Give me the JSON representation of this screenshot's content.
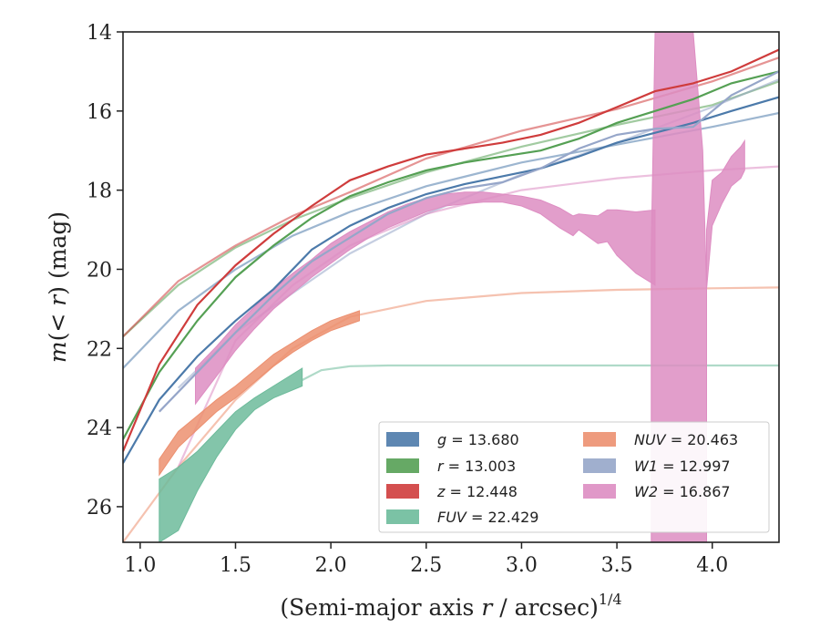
{
  "chart_data": {
    "type": "line",
    "xlabel_main": "(Semi-major axis ",
    "xlabel_r": "r",
    "xlabel_tail": " / arcsec)",
    "xlabel_sup": "1/4",
    "ylabel_m": "m",
    "ylabel_mid": "(< ",
    "ylabel_r": "r",
    "ylabel_tail": ") (mag)",
    "xlim": [
      0.91,
      4.35
    ],
    "ylim": [
      26.9,
      14.0
    ],
    "y_inverted": true,
    "xticks": [
      1.0,
      1.5,
      2.0,
      2.5,
      3.0,
      3.5,
      4.0
    ],
    "xtick_labels": [
      "1.0",
      "1.5",
      "2.0",
      "2.5",
      "3.0",
      "3.5",
      "4.0"
    ],
    "yticks": [
      14,
      16,
      18,
      20,
      22,
      24,
      26
    ],
    "ytick_labels": [
      "14",
      "16",
      "18",
      "20",
      "22",
      "24",
      "26"
    ],
    "legend_position": "lower-right",
    "legend": [
      {
        "key": "g",
        "band": "g",
        "value": "13.680",
        "color": "#4c7aaa"
      },
      {
        "key": "r",
        "band": "r",
        "value": "13.003",
        "color": "#55a054"
      },
      {
        "key": "z",
        "band": "z",
        "value": "12.448",
        "color": "#cf3c3c"
      },
      {
        "key": "FUV",
        "band": "FUV",
        "value": "22.429",
        "color": "#6dbb9b"
      },
      {
        "key": "NUV",
        "band": "NUV",
        "value": "20.463",
        "color": "#ec9070"
      },
      {
        "key": "W1",
        "band": "W1",
        "value": "12.997",
        "color": "#96a6c9"
      },
      {
        "key": "W2",
        "band": "W2",
        "value": "16.867",
        "color": "#dd8dc2"
      }
    ],
    "series": [
      {
        "key": "g",
        "kind": "line",
        "x": [
          0.91,
          1.1,
          1.3,
          1.5,
          1.7,
          1.9,
          2.1,
          2.3,
          2.5,
          2.7,
          2.9,
          3.1,
          3.3,
          3.5,
          3.7,
          3.9,
          4.1,
          4.35
        ],
        "y": [
          24.9,
          23.3,
          22.2,
          21.3,
          20.5,
          19.5,
          18.9,
          18.45,
          18.1,
          17.85,
          17.65,
          17.45,
          17.15,
          16.8,
          16.55,
          16.3,
          16.0,
          15.65
        ]
      },
      {
        "key": "r",
        "kind": "line",
        "x": [
          0.91,
          1.1,
          1.3,
          1.5,
          1.7,
          1.9,
          2.1,
          2.3,
          2.5,
          2.7,
          2.9,
          3.1,
          3.3,
          3.5,
          3.7,
          3.9,
          4.1,
          4.35
        ],
        "y": [
          24.3,
          22.6,
          21.3,
          20.2,
          19.4,
          18.7,
          18.15,
          17.8,
          17.5,
          17.3,
          17.15,
          17.0,
          16.7,
          16.3,
          16.0,
          15.7,
          15.3,
          15.0
        ]
      },
      {
        "key": "z",
        "kind": "line",
        "x": [
          0.91,
          1.1,
          1.3,
          1.5,
          1.7,
          1.9,
          2.1,
          2.3,
          2.5,
          2.7,
          2.9,
          3.1,
          3.3,
          3.5,
          3.7,
          3.9,
          4.1,
          4.35
        ],
        "y": [
          24.6,
          22.4,
          20.9,
          19.9,
          19.1,
          18.4,
          17.75,
          17.4,
          17.1,
          16.95,
          16.8,
          16.6,
          16.3,
          15.9,
          15.5,
          15.3,
          15.0,
          14.45
        ]
      },
      {
        "key": "W1",
        "kind": "line",
        "x": [
          1.1,
          1.3,
          1.5,
          1.7,
          1.9,
          2.1,
          2.3,
          2.5,
          2.7,
          2.9,
          3.1,
          3.3,
          3.5,
          3.7,
          3.9,
          4.1,
          4.35
        ],
        "y": [
          23.6,
          22.6,
          21.6,
          20.65,
          19.8,
          19.2,
          18.6,
          18.2,
          17.95,
          17.8,
          17.45,
          16.95,
          16.6,
          16.45,
          16.4,
          15.6,
          15.0
        ]
      },
      {
        "key": "NUV",
        "kind": "band",
        "x": [
          1.1,
          1.2,
          1.3,
          1.4,
          1.5,
          1.6,
          1.7,
          1.8,
          1.9,
          2.0,
          2.15
        ],
        "y_lo": [
          25.2,
          24.5,
          24.05,
          23.6,
          23.25,
          22.85,
          22.45,
          22.1,
          21.8,
          21.55,
          21.3
        ],
        "y_hi": [
          24.8,
          24.1,
          23.7,
          23.3,
          22.95,
          22.55,
          22.15,
          21.85,
          21.55,
          21.3,
          21.05
        ]
      },
      {
        "key": "FUV",
        "kind": "band",
        "x": [
          1.1,
          1.2,
          1.3,
          1.4,
          1.5,
          1.6,
          1.7,
          1.85
        ],
        "y_lo": [
          26.9,
          26.6,
          25.6,
          24.75,
          24.05,
          23.55,
          23.25,
          22.95
        ],
        "y_hi": [
          25.3,
          25.0,
          24.6,
          24.1,
          23.6,
          23.25,
          22.95,
          22.5
        ]
      },
      {
        "key": "W2",
        "kind": "band",
        "x": [
          1.29,
          1.4,
          1.5,
          1.6,
          1.7,
          1.8,
          1.9,
          2.0,
          2.1,
          2.2,
          2.3,
          2.4,
          2.5,
          2.6,
          2.7,
          2.8,
          2.9,
          3.0,
          3.1,
          3.2,
          3.27,
          3.3,
          3.4,
          3.45,
          3.5,
          3.6,
          3.7
        ],
        "y_lo": [
          23.4,
          22.7,
          22.05,
          21.5,
          21.0,
          20.6,
          20.2,
          19.85,
          19.5,
          19.2,
          18.95,
          18.75,
          18.55,
          18.4,
          18.35,
          18.3,
          18.3,
          18.4,
          18.6,
          18.95,
          19.15,
          19.0,
          19.35,
          19.3,
          19.65,
          20.1,
          20.4
        ],
        "y_hi": [
          22.5,
          21.95,
          21.4,
          20.95,
          20.5,
          20.1,
          19.75,
          19.35,
          19.05,
          18.8,
          18.55,
          18.35,
          18.2,
          18.1,
          18.05,
          18.05,
          18.1,
          18.15,
          18.25,
          18.45,
          18.65,
          18.6,
          18.65,
          18.5,
          18.5,
          18.55,
          18.5
        ]
      },
      {
        "key": "W2",
        "kind": "band",
        "x": [
          3.68,
          3.7,
          3.75,
          3.8,
          3.85,
          3.9,
          3.95,
          3.97
        ],
        "y_lo": [
          26.9,
          26.9,
          26.9,
          26.9,
          26.9,
          26.9,
          26.9,
          26.9
        ],
        "y_hi": [
          19.5,
          14.0,
          14.0,
          14.0,
          14.0,
          14.0,
          17.0,
          20.5
        ]
      },
      {
        "key": "W2",
        "kind": "band",
        "x": [
          3.97,
          4.0,
          4.05,
          4.1,
          4.15,
          4.17
        ],
        "y_lo": [
          20.5,
          18.9,
          18.35,
          17.9,
          17.7,
          17.5
        ],
        "y_hi": [
          19.0,
          17.75,
          17.55,
          17.15,
          16.9,
          16.75
        ]
      }
    ],
    "model_curves": [
      {
        "key": "g",
        "x": [
          0.91,
          1.2,
          1.5,
          1.8,
          2.1,
          2.5,
          3.0,
          3.5,
          4.0,
          4.35
        ],
        "y": [
          22.5,
          21.05,
          20.0,
          19.15,
          18.55,
          17.9,
          17.3,
          16.85,
          16.4,
          16.05
        ]
      },
      {
        "key": "r",
        "x": [
          0.91,
          1.2,
          1.5,
          1.8,
          2.1,
          2.5,
          3.0,
          3.5,
          4.0,
          4.35
        ],
        "y": [
          21.7,
          20.4,
          19.45,
          18.75,
          18.2,
          17.55,
          16.9,
          16.35,
          15.85,
          15.25
        ]
      },
      {
        "key": "z",
        "x": [
          0.91,
          1.2,
          1.5,
          1.8,
          2.1,
          2.5,
          3.0,
          3.5,
          4.0,
          4.35
        ],
        "y": [
          21.7,
          20.3,
          19.4,
          18.65,
          18.05,
          17.2,
          16.5,
          15.95,
          15.25,
          14.65
        ]
      },
      {
        "key": "W1",
        "x": [
          1.2,
          1.5,
          1.8,
          2.1,
          2.5,
          3.0,
          3.5,
          4.0,
          4.35
        ],
        "y": [
          23.0,
          21.6,
          20.6,
          19.6,
          18.6,
          17.6,
          16.8,
          15.9,
          15.2
        ]
      },
      {
        "key": "NUV",
        "x": [
          0.91,
          1.2,
          1.5,
          1.8,
          2.1,
          2.5,
          3.0,
          3.5,
          4.0,
          4.35
        ],
        "y": [
          26.9,
          25.0,
          23.3,
          22.0,
          21.2,
          20.8,
          20.6,
          20.52,
          20.48,
          20.46
        ]
      },
      {
        "key": "FUV",
        "x": [
          1.85,
          1.95,
          2.1,
          2.3,
          2.6,
          3.0,
          3.5,
          4.0,
          4.35
        ],
        "y": [
          22.8,
          22.55,
          22.45,
          22.43,
          22.43,
          22.43,
          22.43,
          22.43,
          22.43
        ]
      },
      {
        "key": "W2",
        "x": [
          1.2,
          1.5,
          1.8,
          2.1,
          2.5,
          3.0,
          3.5,
          4.0,
          4.35
        ],
        "y": [
          25.0,
          21.8,
          20.4,
          19.4,
          18.6,
          18.0,
          17.7,
          17.5,
          17.4
        ]
      }
    ]
  }
}
